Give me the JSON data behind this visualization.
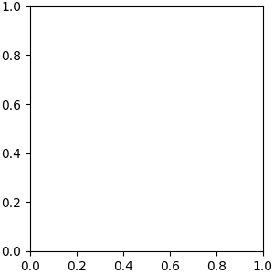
{
  "bg_color": "#ebebeb",
  "bond_color": "#1a1a1a",
  "N_color": "#1414e6",
  "O_color": "#e60000",
  "F_color": "#cc00cc",
  "H_color": "#7a9999",
  "line_width": 1.4,
  "dbo": 0.055
}
